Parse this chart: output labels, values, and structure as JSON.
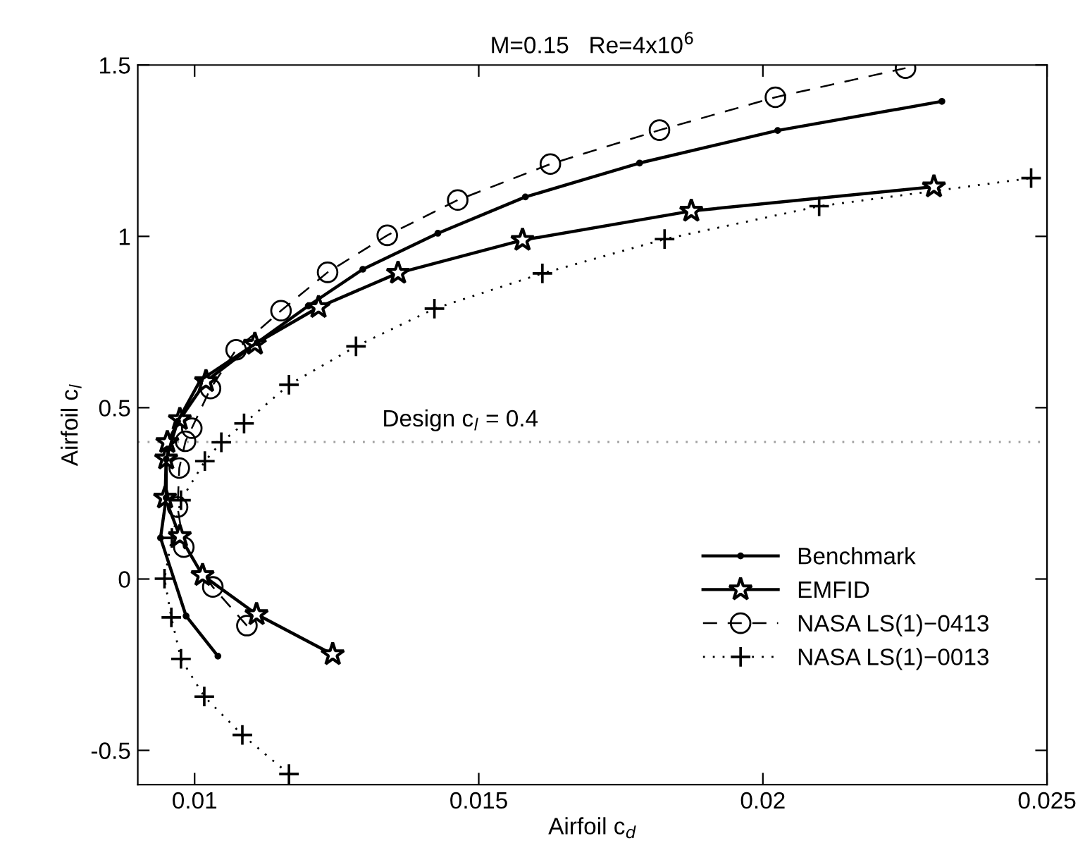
{
  "chart_data": {
    "type": "line",
    "title": "M=0.15   Re=4x10$^{6}$",
    "xlabel": "Airfoil c$_{d}$",
    "ylabel": "Airfoil c$_{l}$",
    "xlim": [
      0.009,
      0.025
    ],
    "ylim": [
      -0.6,
      1.5
    ],
    "xticks": [
      0.01,
      0.015,
      0.02,
      0.025
    ],
    "yticks": [
      -0.5,
      0,
      0.5,
      1,
      1.5
    ],
    "grid": false,
    "legend": "bottom right",
    "ref_lines": [
      {
        "axis": "y",
        "value": 0.4,
        "label": "Design c$_{l}$ = 0.4",
        "color": "#a0a0a0",
        "line_style": "dotted"
      }
    ],
    "series": [
      {
        "name": "Benchmark",
        "color": "#000000",
        "marker": "point",
        "line_style": "solid",
        "x": [
          0.01041,
          0.00985,
          0.0094,
          0.0095,
          0.0095,
          0.0097,
          0.0101,
          0.0111,
          0.012,
          0.01296,
          0.01428,
          0.01582,
          0.01783,
          0.02026,
          0.02315
        ],
        "values": [
          -0.225,
          -0.108,
          0.12,
          0.237,
          0.35,
          0.46,
          0.58,
          0.69,
          0.797,
          0.904,
          1.009,
          1.115,
          1.214,
          1.309,
          1.394
        ]
      },
      {
        "name": "EMFID",
        "color": "#000000",
        "marker": "star",
        "line_style": "solid",
        "x": [
          0.01243,
          0.01109,
          0.01014,
          0.00974,
          0.00948,
          0.0095,
          0.00952,
          0.00974,
          0.0102,
          0.01106,
          0.01218,
          0.01358,
          0.01577,
          0.01874,
          0.02301
        ],
        "values": [
          -0.22,
          -0.103,
          0.011,
          0.125,
          0.237,
          0.351,
          0.399,
          0.466,
          0.577,
          0.686,
          0.793,
          0.893,
          0.989,
          1.074,
          1.145
        ]
      },
      {
        "name": "NASA LS(1)−0413",
        "color": "#000000",
        "marker": "circle",
        "line_style": "dashed",
        "x": [
          0.01092,
          0.01032,
          0.00981,
          0.0097,
          0.00973,
          0.00984,
          0.00995,
          0.01028,
          0.01073,
          0.01152,
          0.01234,
          0.01339,
          0.01463,
          0.01626,
          0.01818,
          0.02022,
          0.02251
        ],
        "values": [
          -0.136,
          -0.023,
          0.093,
          0.21,
          0.324,
          0.402,
          0.44,
          0.556,
          0.669,
          0.783,
          0.895,
          1.003,
          1.106,
          1.211,
          1.31,
          1.406,
          1.491
        ]
      },
      {
        "name": "NASA LS(1)−0013",
        "color": "#000000",
        "marker": "cross",
        "line_style": "dotted",
        "x": [
          0.01166,
          0.01084,
          0.01017,
          0.00976,
          0.00959,
          0.00947,
          0.0096,
          0.00976,
          0.01018,
          0.01047,
          0.01087,
          0.01166,
          0.01284,
          0.01422,
          0.01612,
          0.01827,
          0.02099,
          0.02472
        ],
        "values": [
          -0.569,
          -0.455,
          -0.343,
          -0.233,
          -0.112,
          0.001,
          0.12,
          0.23,
          0.344,
          0.399,
          0.454,
          0.567,
          0.679,
          0.789,
          0.892,
          0.992,
          1.088,
          1.17
        ]
      }
    ]
  }
}
